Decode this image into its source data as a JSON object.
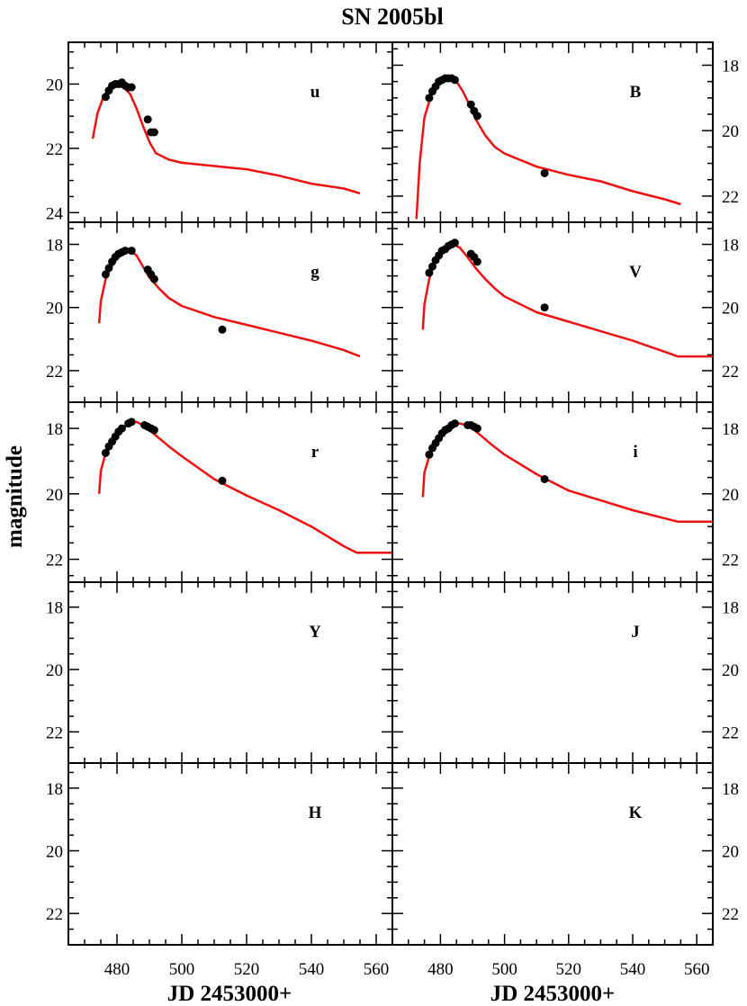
{
  "chart_data": {
    "type": "scatter",
    "title": "SN 2005bl",
    "xlabel": "JD 2453000+",
    "ylabel": "magnitude",
    "layout": "5 rows x 2 columns of panels sharing the x axis",
    "x_range": [
      465,
      565
    ],
    "x_ticks": [
      480,
      500,
      520,
      540,
      560
    ],
    "y_axis": "inverted (brighter magnitudes at top)",
    "right_axis_tick_labels": "shown on right-column panels",
    "model_color": "#ee1111",
    "point_color": "#000000",
    "panels": [
      {
        "band": "u",
        "row": 0,
        "col": 0,
        "y_range": [
          24.3,
          18.7
        ],
        "y_ticks": [
          20,
          22,
          24
        ],
        "points": [
          [
            476.5,
            20.4
          ],
          [
            477.5,
            20.2
          ],
          [
            478.5,
            20.05
          ],
          [
            479.5,
            20.0
          ],
          [
            480.5,
            20.0
          ],
          [
            481.5,
            19.95
          ],
          [
            482.5,
            20.05
          ],
          [
            483.5,
            20.1
          ],
          [
            484.5,
            20.1
          ],
          [
            489.5,
            21.1
          ],
          [
            490.5,
            21.5
          ],
          [
            491.5,
            21.5
          ]
        ],
        "model": [
          [
            472.5,
            21.7
          ],
          [
            474,
            20.9
          ],
          [
            476,
            20.35
          ],
          [
            478,
            20.1
          ],
          [
            480,
            20.05
          ],
          [
            482,
            20.1
          ],
          [
            484,
            20.3
          ],
          [
            486,
            20.75
          ],
          [
            488,
            21.3
          ],
          [
            490,
            21.8
          ],
          [
            492,
            22.15
          ],
          [
            496,
            22.35
          ],
          [
            500,
            22.45
          ],
          [
            510,
            22.55
          ],
          [
            520,
            22.65
          ],
          [
            530,
            22.85
          ],
          [
            540,
            23.1
          ],
          [
            550,
            23.25
          ],
          [
            555,
            23.4
          ]
        ]
      },
      {
        "band": "B",
        "row": 0,
        "col": 1,
        "y_range": [
          22.8,
          17.3
        ],
        "y_ticks": [
          18,
          20,
          22
        ],
        "points": [
          [
            476.5,
            19.0
          ],
          [
            477.5,
            18.8
          ],
          [
            478.5,
            18.65
          ],
          [
            479.5,
            18.5
          ],
          [
            480.5,
            18.45
          ],
          [
            481.5,
            18.4
          ],
          [
            482.5,
            18.4
          ],
          [
            483.5,
            18.4
          ],
          [
            484.5,
            18.45
          ],
          [
            489.5,
            19.2
          ],
          [
            490.5,
            19.4
          ],
          [
            491.5,
            19.55
          ],
          [
            512.5,
            21.3
          ]
        ],
        "model": [
          [
            472.5,
            22.7
          ],
          [
            473.5,
            21.0
          ],
          [
            475,
            19.6
          ],
          [
            477,
            18.95
          ],
          [
            479,
            18.6
          ],
          [
            481,
            18.4
          ],
          [
            483,
            18.4
          ],
          [
            485,
            18.5
          ],
          [
            487,
            18.8
          ],
          [
            489,
            19.2
          ],
          [
            491,
            19.65
          ],
          [
            494,
            20.15
          ],
          [
            497,
            20.5
          ],
          [
            500,
            20.7
          ],
          [
            510,
            21.1
          ],
          [
            520,
            21.35
          ],
          [
            530,
            21.55
          ],
          [
            540,
            21.85
          ],
          [
            550,
            22.1
          ],
          [
            555,
            22.25
          ]
        ]
      },
      {
        "band": "g",
        "row": 1,
        "col": 0,
        "y_range": [
          23.0,
          17.3
        ],
        "y_ticks": [
          18,
          20,
          22
        ],
        "points": [
          [
            476.5,
            18.95
          ],
          [
            477.5,
            18.75
          ],
          [
            478.5,
            18.55
          ],
          [
            479.5,
            18.4
          ],
          [
            480.5,
            18.3
          ],
          [
            481.5,
            18.25
          ],
          [
            482.5,
            18.2
          ],
          [
            484.5,
            18.2
          ],
          [
            489.5,
            18.8
          ],
          [
            490.5,
            18.95
          ],
          [
            491.5,
            19.1
          ],
          [
            512.5,
            20.7
          ]
        ],
        "model": [
          [
            474.5,
            20.5
          ],
          [
            475,
            19.8
          ],
          [
            476.5,
            19.1
          ],
          [
            478,
            18.75
          ],
          [
            480,
            18.45
          ],
          [
            482,
            18.25
          ],
          [
            484,
            18.2
          ],
          [
            486,
            18.35
          ],
          [
            488,
            18.7
          ],
          [
            490,
            19.05
          ],
          [
            493,
            19.4
          ],
          [
            496,
            19.7
          ],
          [
            500,
            19.95
          ],
          [
            510,
            20.3
          ],
          [
            520,
            20.55
          ],
          [
            530,
            20.8
          ],
          [
            540,
            21.05
          ],
          [
            550,
            21.35
          ],
          [
            555,
            21.55
          ]
        ]
      },
      {
        "band": "V",
        "row": 1,
        "col": 1,
        "y_range": [
          23.0,
          17.3
        ],
        "y_ticks": [
          18,
          20,
          22
        ],
        "points": [
          [
            476.5,
            18.9
          ],
          [
            477.5,
            18.7
          ],
          [
            478.5,
            18.5
          ],
          [
            479.5,
            18.35
          ],
          [
            480.5,
            18.2
          ],
          [
            481.5,
            18.15
          ],
          [
            482.5,
            18.05
          ],
          [
            483.5,
            18.0
          ],
          [
            484.5,
            17.95
          ],
          [
            489.5,
            18.3
          ],
          [
            490.5,
            18.4
          ],
          [
            491.5,
            18.55
          ],
          [
            512.5,
            20.0
          ]
        ],
        "model": [
          [
            474.5,
            20.7
          ],
          [
            475,
            19.9
          ],
          [
            476.5,
            19.1
          ],
          [
            478,
            18.6
          ],
          [
            480,
            18.3
          ],
          [
            482,
            18.1
          ],
          [
            484,
            18.0
          ],
          [
            486,
            18.1
          ],
          [
            488,
            18.35
          ],
          [
            491,
            18.75
          ],
          [
            494,
            19.1
          ],
          [
            497,
            19.4
          ],
          [
            500,
            19.65
          ],
          [
            510,
            20.15
          ],
          [
            520,
            20.45
          ],
          [
            530,
            20.75
          ],
          [
            540,
            21.05
          ],
          [
            550,
            21.4
          ],
          [
            554,
            21.55
          ],
          [
            565,
            21.55
          ]
        ]
      },
      {
        "band": "r",
        "row": 2,
        "col": 0,
        "y_range": [
          22.7,
          17.2
        ],
        "y_ticks": [
          18,
          20,
          22
        ],
        "points": [
          [
            476.5,
            18.75
          ],
          [
            477.5,
            18.55
          ],
          [
            478.5,
            18.4
          ],
          [
            479.5,
            18.25
          ],
          [
            480.5,
            18.1
          ],
          [
            481.5,
            18.0
          ],
          [
            483.5,
            17.85
          ],
          [
            484.5,
            17.8
          ],
          [
            488.5,
            17.9
          ],
          [
            489.5,
            17.95
          ],
          [
            490.5,
            18.0
          ],
          [
            491.5,
            18.05
          ],
          [
            512.5,
            19.6
          ]
        ],
        "model": [
          [
            474.5,
            20.0
          ],
          [
            475,
            19.3
          ],
          [
            476.5,
            18.75
          ],
          [
            478,
            18.45
          ],
          [
            480,
            18.15
          ],
          [
            482,
            17.95
          ],
          [
            484,
            17.85
          ],
          [
            486,
            17.8
          ],
          [
            488,
            17.9
          ],
          [
            490,
            18.05
          ],
          [
            493,
            18.3
          ],
          [
            496,
            18.55
          ],
          [
            500,
            18.85
          ],
          [
            510,
            19.55
          ],
          [
            520,
            20.05
          ],
          [
            530,
            20.5
          ],
          [
            540,
            21.0
          ],
          [
            550,
            21.6
          ],
          [
            554,
            21.8
          ],
          [
            565,
            21.8
          ]
        ]
      },
      {
        "band": "i",
        "row": 2,
        "col": 1,
        "y_range": [
          22.7,
          17.2
        ],
        "y_ticks": [
          18,
          20,
          22
        ],
        "points": [
          [
            476.5,
            18.8
          ],
          [
            477.5,
            18.6
          ],
          [
            478.5,
            18.45
          ],
          [
            479.5,
            18.3
          ],
          [
            480.5,
            18.15
          ],
          [
            481.5,
            18.05
          ],
          [
            482.5,
            18.0
          ],
          [
            483.5,
            17.9
          ],
          [
            484.5,
            17.85
          ],
          [
            488.5,
            17.9
          ],
          [
            489.5,
            17.9
          ],
          [
            490.5,
            17.95
          ],
          [
            491.5,
            18.0
          ],
          [
            512.5,
            19.55
          ]
        ],
        "model": [
          [
            474.5,
            20.1
          ],
          [
            475,
            19.35
          ],
          [
            476.5,
            18.85
          ],
          [
            478,
            18.5
          ],
          [
            480,
            18.2
          ],
          [
            482,
            18.0
          ],
          [
            484,
            17.9
          ],
          [
            486,
            17.85
          ],
          [
            488,
            17.9
          ],
          [
            490,
            18.0
          ],
          [
            493,
            18.25
          ],
          [
            496,
            18.5
          ],
          [
            500,
            18.8
          ],
          [
            510,
            19.4
          ],
          [
            520,
            19.9
          ],
          [
            530,
            20.2
          ],
          [
            540,
            20.5
          ],
          [
            550,
            20.75
          ],
          [
            554,
            20.85
          ],
          [
            565,
            20.85
          ]
        ]
      },
      {
        "band": "Y",
        "row": 3,
        "col": 0,
        "y_range": [
          23.0,
          17.2
        ],
        "y_ticks": [
          18,
          20,
          22
        ],
        "points": [],
        "model": []
      },
      {
        "band": "J",
        "row": 3,
        "col": 1,
        "y_range": [
          23.0,
          17.2
        ],
        "y_ticks": [
          18,
          20,
          22
        ],
        "points": [],
        "model": []
      },
      {
        "band": "H",
        "row": 4,
        "col": 0,
        "y_range": [
          23.0,
          17.2
        ],
        "y_ticks": [
          18,
          20,
          22
        ],
        "points": [],
        "model": []
      },
      {
        "band": "K",
        "row": 4,
        "col": 1,
        "y_range": [
          23.0,
          17.2
        ],
        "y_ticks": [
          18,
          20,
          22
        ],
        "points": [],
        "model": []
      }
    ]
  }
}
